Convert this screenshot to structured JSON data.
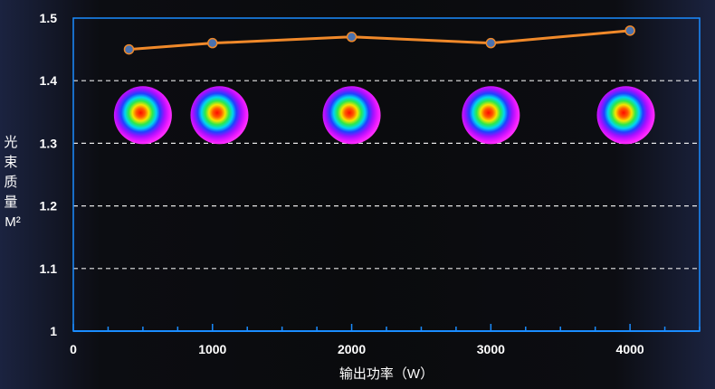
{
  "chart_data": {
    "type": "line",
    "title": "",
    "xlabel": "输出功率（W）",
    "ylabel_chars": [
      "光",
      "束",
      "质",
      "量",
      "M²"
    ],
    "xlim": [
      0,
      4500
    ],
    "ylim": [
      1.0,
      1.5
    ],
    "x_ticks": [
      0,
      1000,
      2000,
      3000,
      4000
    ],
    "x_tick_labels": [
      "0",
      "1000",
      "2000",
      "3000",
      "4000"
    ],
    "y_ticks": [
      1.0,
      1.1,
      1.2,
      1.3,
      1.4,
      1.5
    ],
    "y_tick_labels": [
      "1",
      "1.1",
      "1.2",
      "1.3",
      "1.4",
      "1.5"
    ],
    "grid": "dashed-horizontal",
    "series": [
      {
        "name": "M²",
        "x": [
          400,
          1000,
          2000,
          3000,
          4000
        ],
        "values": [
          1.45,
          1.46,
          1.47,
          1.46,
          1.48
        ],
        "color": "#f0892a",
        "marker_color": "#4a72b0"
      }
    ],
    "beam_profiles": {
      "x": [
        500,
        1050,
        2000,
        3000,
        3970
      ],
      "y": 1.345
    }
  },
  "colors": {
    "axis": "#1a8cff",
    "grid": "#ffffff",
    "text": "#ffffff"
  }
}
